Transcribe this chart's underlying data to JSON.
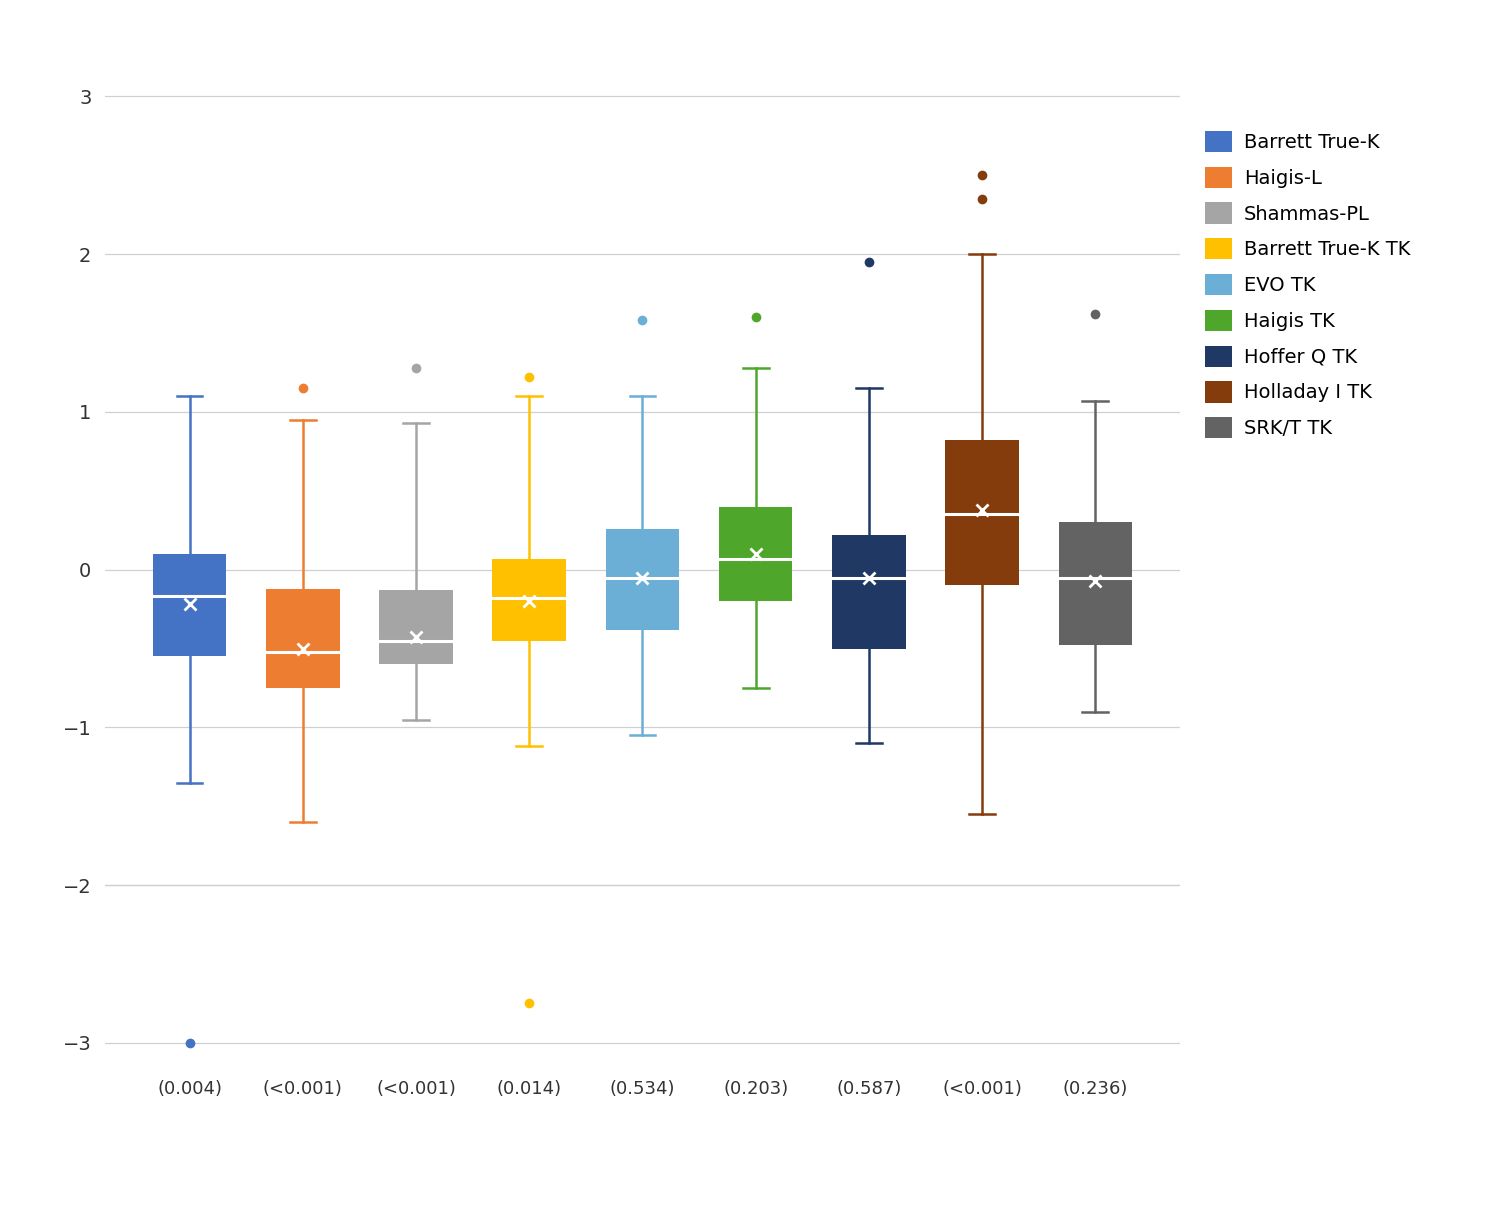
{
  "formulas": [
    "Barrett True-K",
    "Haigis-L",
    "Shammas-PL",
    "Barrett True-K TK",
    "EVO TK",
    "Haigis TK",
    "Hoffer Q TK",
    "Holladay I TK",
    "SRK/T TK"
  ],
  "p_values": [
    "(0.004)",
    "(<0.001)",
    "(<0.001)",
    "(0.014)",
    "(0.534)",
    "(0.203)",
    "(0.587)",
    "(<0.001)",
    "(0.236)"
  ],
  "colors": [
    "#4472C4",
    "#ED7D31",
    "#A5A5A5",
    "#FFC000",
    "#6BAED6",
    "#4EA72A",
    "#1F3864",
    "#843C0C",
    "#636363"
  ],
  "boxes": [
    {
      "q1": -0.55,
      "median": -0.17,
      "q3": 0.1,
      "mean": -0.22,
      "whislo": -1.35,
      "whishi": 1.1,
      "fliers_low": [
        -3.0
      ],
      "fliers_high": []
    },
    {
      "q1": -0.75,
      "median": -0.52,
      "q3": -0.12,
      "mean": -0.5,
      "whislo": -1.6,
      "whishi": 0.95,
      "fliers_low": [],
      "fliers_high": [
        1.15
      ]
    },
    {
      "q1": -0.6,
      "median": -0.45,
      "q3": -0.13,
      "mean": -0.43,
      "whislo": -0.95,
      "whishi": 0.93,
      "fliers_low": [],
      "fliers_high": [
        1.28
      ]
    },
    {
      "q1": -0.45,
      "median": -0.18,
      "q3": 0.07,
      "mean": -0.2,
      "whislo": -1.12,
      "whishi": 1.1,
      "fliers_low": [
        -2.75
      ],
      "fliers_high": [
        1.22
      ]
    },
    {
      "q1": -0.38,
      "median": -0.05,
      "q3": 0.26,
      "mean": -0.05,
      "whislo": -1.05,
      "whishi": 1.1,
      "fliers_low": [],
      "fliers_high": [
        1.58
      ]
    },
    {
      "q1": -0.2,
      "median": 0.07,
      "q3": 0.4,
      "mean": 0.1,
      "whislo": -0.75,
      "whishi": 1.28,
      "fliers_low": [],
      "fliers_high": [
        1.6
      ]
    },
    {
      "q1": -0.5,
      "median": -0.05,
      "q3": 0.22,
      "mean": -0.05,
      "whislo": -1.1,
      "whishi": 1.15,
      "fliers_low": [],
      "fliers_high": [
        1.95
      ]
    },
    {
      "q1": -0.1,
      "median": 0.35,
      "q3": 0.82,
      "mean": 0.38,
      "whislo": -1.55,
      "whishi": 2.0,
      "fliers_low": [],
      "fliers_high": [
        2.35,
        2.5
      ]
    },
    {
      "q1": -0.48,
      "median": -0.05,
      "q3": 0.3,
      "mean": -0.07,
      "whislo": -0.9,
      "whishi": 1.07,
      "fliers_low": [],
      "fliers_high": [
        1.62
      ]
    }
  ],
  "ylim": [
    -3.15,
    3.15
  ],
  "yticks": [
    -3,
    -2,
    -1,
    0,
    1,
    2,
    3
  ],
  "background_color": "#ffffff",
  "grid_color": "#d0d0d0",
  "box_width": 0.65,
  "legend_fontsize": 14,
  "tick_fontsize": 14
}
